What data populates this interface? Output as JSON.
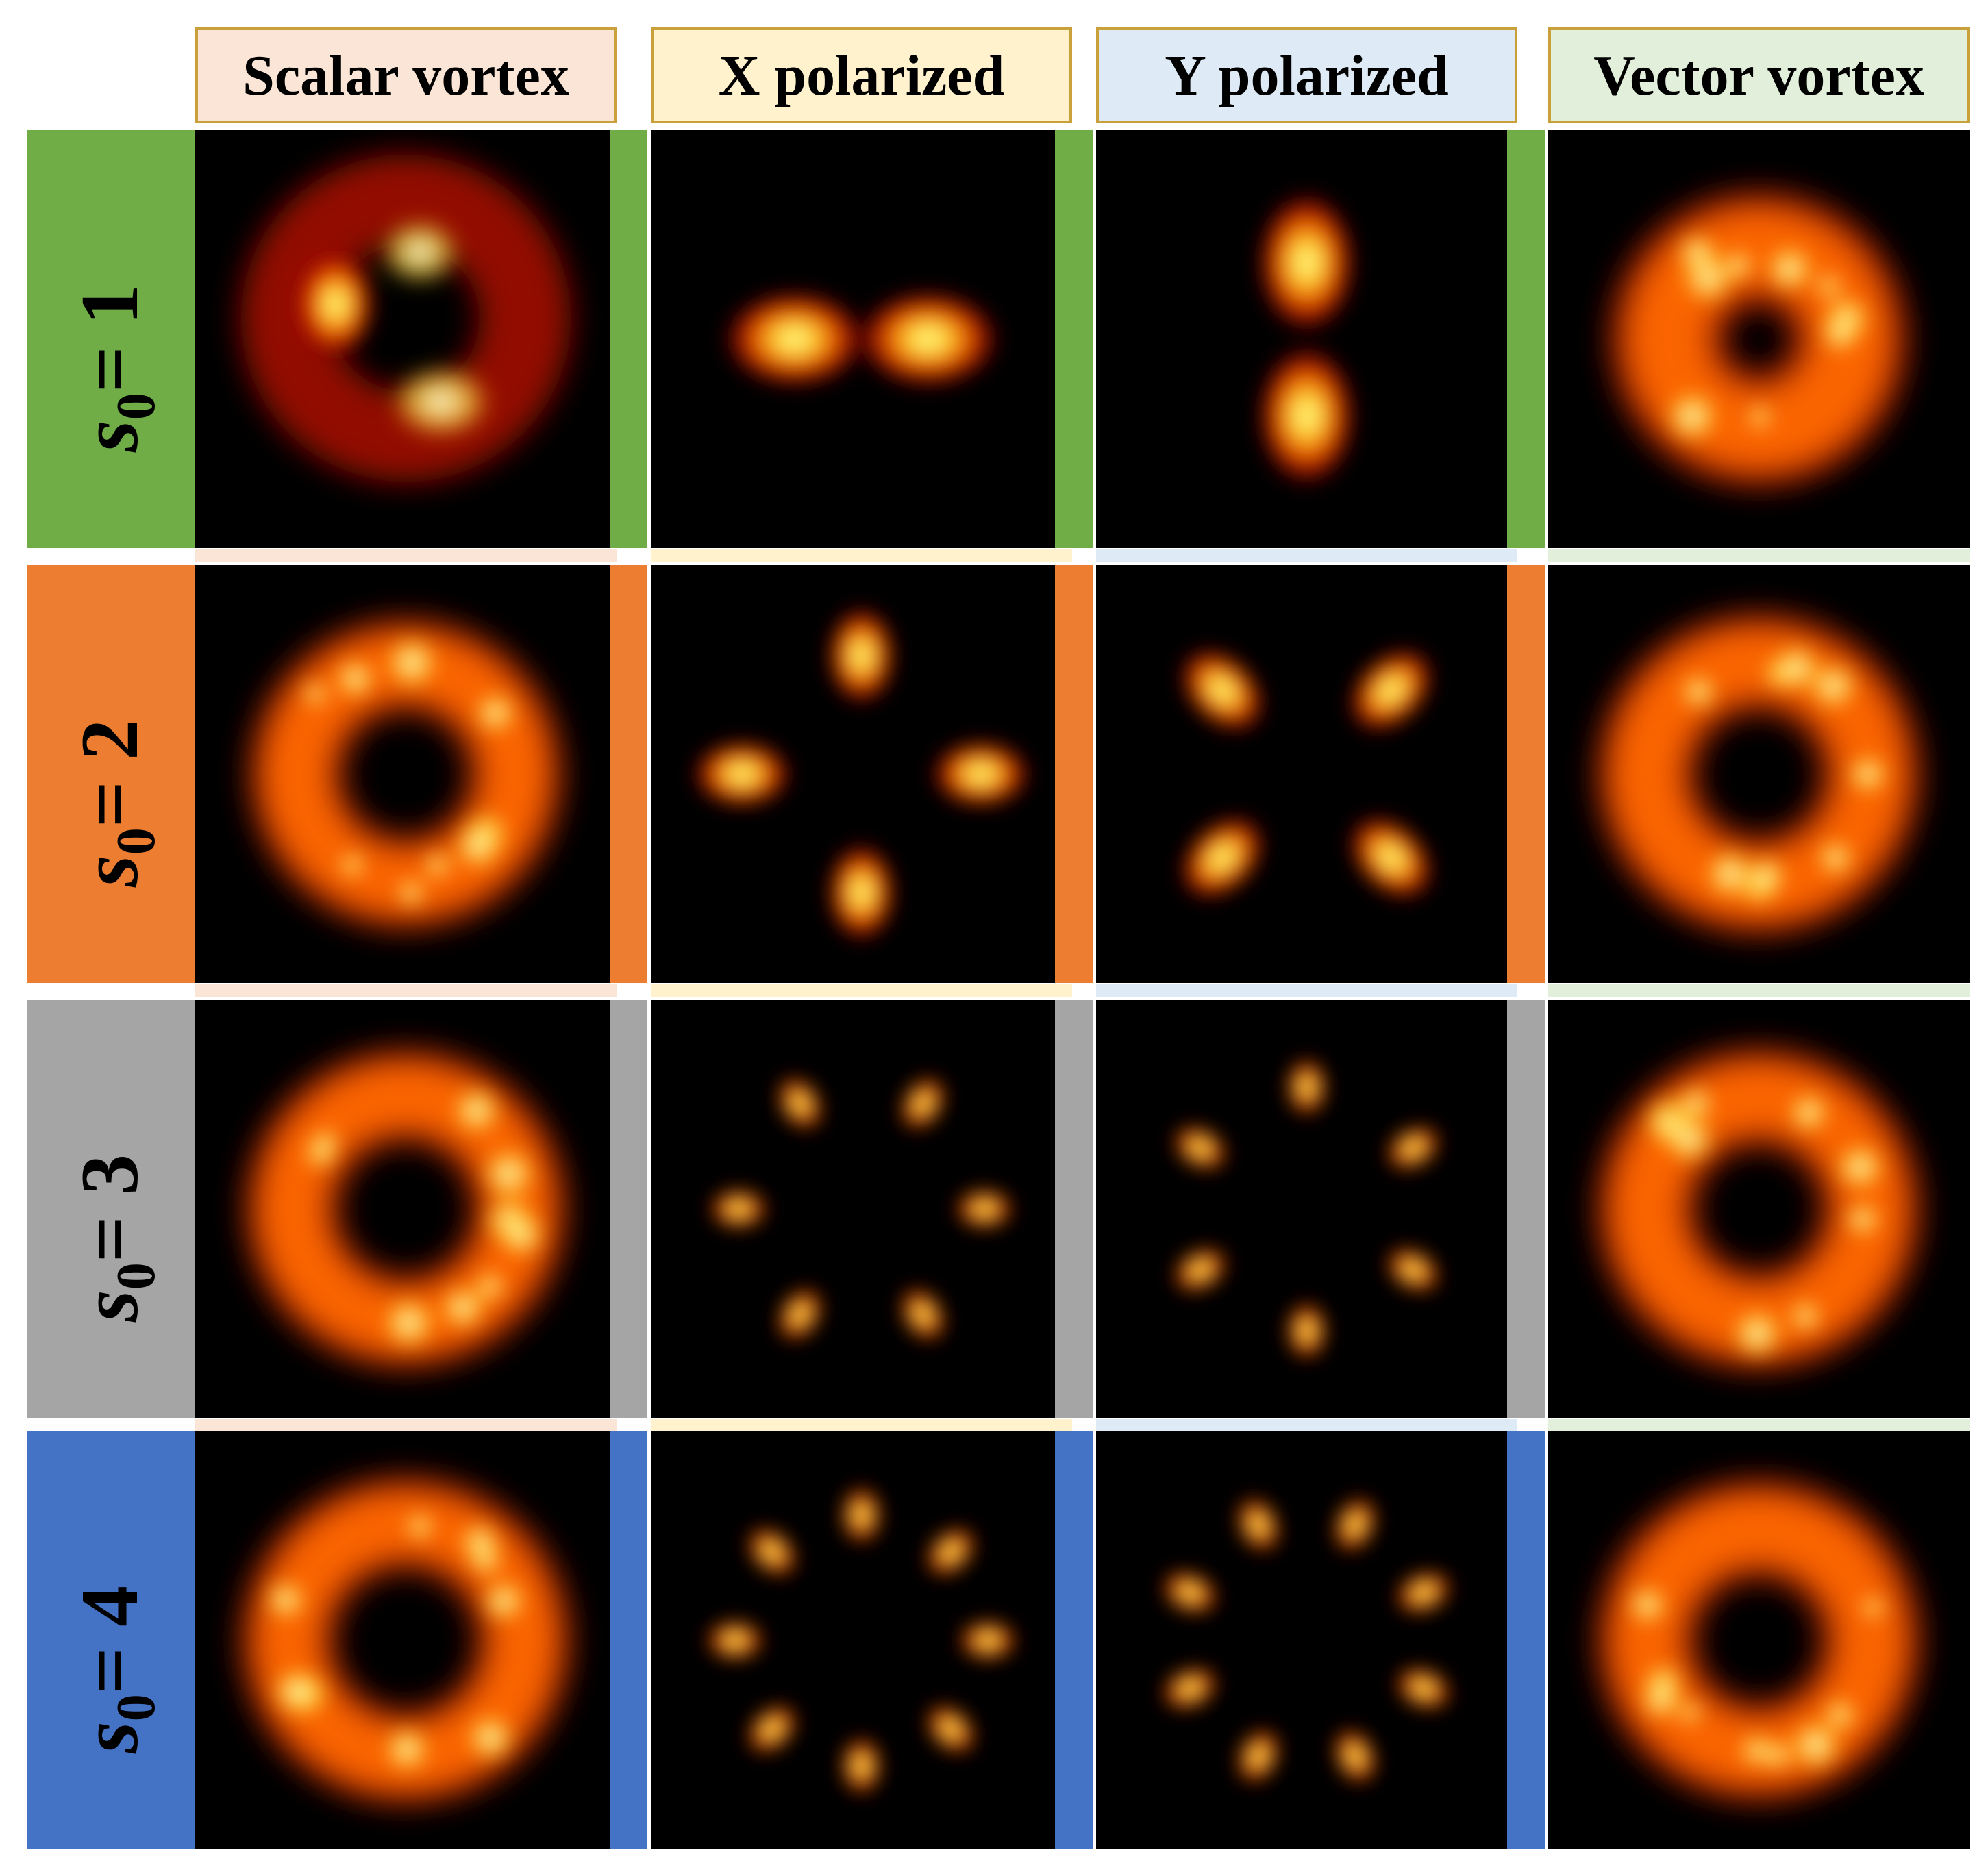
{
  "columns": [
    {
      "label": "Scalar vortex",
      "color": "#fbe5d6"
    },
    {
      "label": "X polarized",
      "color": "#fff2cc"
    },
    {
      "label": "Y polarized",
      "color": "#deebf7"
    },
    {
      "label": "Vector vortex",
      "color": "#e2efda"
    }
  ],
  "header_border_color": "#c9a03a",
  "rows": [
    {
      "label_var": "s",
      "label_sub": "0",
      "label_eq": "= 1",
      "s0": 1,
      "color": "#70ad47"
    },
    {
      "label_var": "s",
      "label_sub": "0",
      "label_eq": "= 2",
      "s0": 2,
      "color": "#ed7d31"
    },
    {
      "label_var": "s",
      "label_sub": "0",
      "label_eq": "= 3",
      "s0": 3,
      "color": "#a5a5a5"
    },
    {
      "label_var": "s",
      "label_sub": "0",
      "label_eq": "= 4",
      "s0": 4,
      "color": "#4472c4"
    }
  ],
  "colormap": "hot",
  "panel_background": "#000000"
}
